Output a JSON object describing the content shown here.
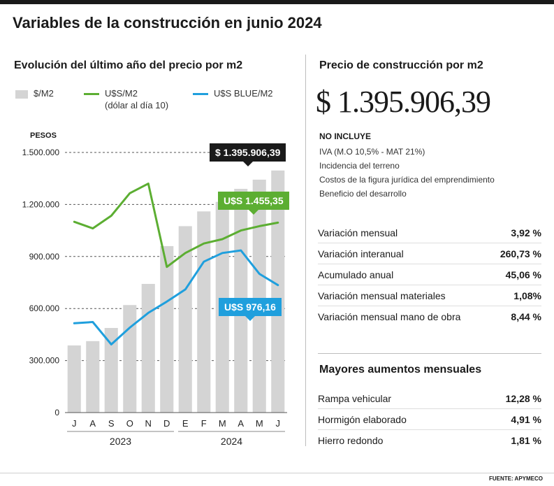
{
  "title": "Variables de la construcción en junio 2024",
  "chart_data": {
    "type": "bar",
    "title": "Evolución del último año del precio por m2",
    "ylabel": "PESOS",
    "ylim": [
      0,
      1500000
    ],
    "yticks": [
      0,
      300000,
      600000,
      900000,
      1200000,
      1500000
    ],
    "ytick_labels": [
      "0",
      "300.000",
      "600.000",
      "900.000",
      "1.200.000",
      "1.500.000"
    ],
    "categories": [
      "J",
      "A",
      "S",
      "O",
      "N",
      "D",
      "E",
      "F",
      "M",
      "A",
      "M",
      "J"
    ],
    "year_groups": [
      {
        "label": "2023",
        "start": 0,
        "end": 5
      },
      {
        "label": "2024",
        "start": 6,
        "end": 11
      }
    ],
    "series": [
      {
        "name": "$/M2",
        "type": "bar",
        "color": "#d4d4d4",
        "values": [
          387000,
          412000,
          488000,
          620000,
          742000,
          960000,
          1075000,
          1160000,
          1215000,
          1290000,
          1343000,
          1395906
        ]
      },
      {
        "name": "U$S/M2",
        "type": "line",
        "color": "#5cae32",
        "values": [
          1100000,
          1062000,
          1135000,
          1265000,
          1320000,
          840000,
          920000,
          975000,
          1000000,
          1050000,
          1075000,
          1095000
        ]
      },
      {
        "name": "U$S BLUE/M2",
        "type": "line",
        "color": "#1f9fdd",
        "values": [
          515000,
          522000,
          393000,
          490000,
          575000,
          640000,
          710000,
          870000,
          920000,
          935000,
          800000,
          735000
        ]
      }
    ],
    "legend": [
      {
        "label": "$/M2",
        "sub": "",
        "color": "#d4d4d4",
        "kind": "bar"
      },
      {
        "label": "U$S/M2",
        "sub": "(dólar al día 10)",
        "color": "#5cae32",
        "kind": "line"
      },
      {
        "label": "U$S BLUE/M2",
        "sub": "",
        "color": "#1f9fdd",
        "kind": "line"
      }
    ],
    "annotations": [
      {
        "text": "$ 1.395.906,39",
        "color": "#1a1a1a"
      },
      {
        "text": "U$S 1.455,35",
        "color": "#5cae32"
      },
      {
        "text": "U$S 976,16",
        "color": "#1f9fdd"
      }
    ],
    "grid": "dashed-horizontal"
  },
  "right": {
    "title": "Precio de construcción por m2",
    "price": "$ 1.395.906,39",
    "excludes_title": "NO INCLUYE",
    "excludes": [
      "IVA (M.O 10,5% - MAT 21%)",
      "Incidencia del terreno",
      "Costos de la figura jurídica del emprendimiento",
      "Beneficio del desarrollo"
    ],
    "variations": [
      {
        "label": "Variación mensual",
        "value": "3,92 %"
      },
      {
        "label": "Variación interanual",
        "value": "260,73 %"
      },
      {
        "label": "Acumulado anual",
        "value": "45,06 %"
      },
      {
        "label": "Variación mensual materiales",
        "value": "1,08%"
      },
      {
        "label": "Variación mensual mano de obra",
        "value": "8,44 %"
      }
    ],
    "increases_title": "Mayores aumentos mensuales",
    "increases": [
      {
        "label": "Rampa vehicular",
        "value": "12,28 %"
      },
      {
        "label": "Hormigón elaborado",
        "value": "4,91 %"
      },
      {
        "label": "Hierro redondo",
        "value": "1,81 %"
      }
    ]
  },
  "source": "FUENTE: APYMECO"
}
